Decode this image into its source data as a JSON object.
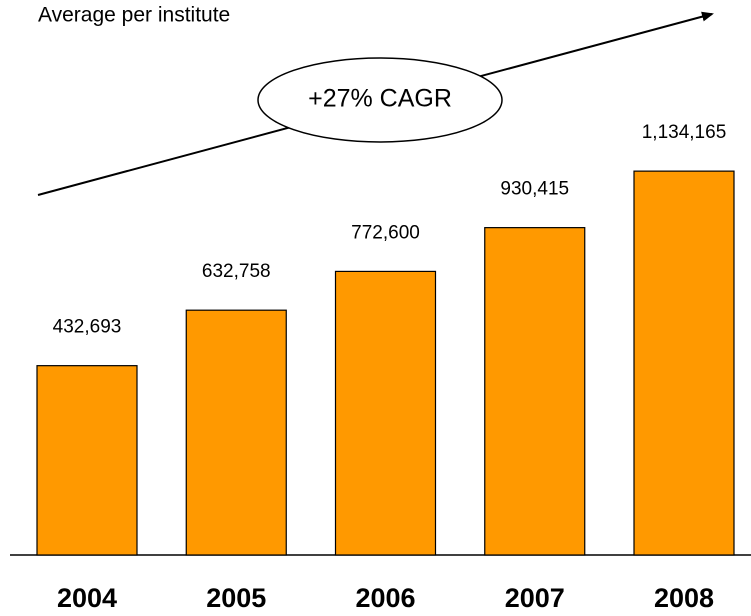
{
  "chart_data": {
    "type": "bar",
    "title": "Average per institute",
    "annotation": "+27% CAGR",
    "categories": [
      "2004",
      "2005",
      "2006",
      "2007",
      "2008"
    ],
    "values": [
      432693,
      632758,
      772600,
      930415,
      1134165
    ],
    "value_labels": [
      "432,693",
      "632,758",
      "772,600",
      "930,415",
      "1,134,165"
    ],
    "color": "#ff9900",
    "ylim": [
      -250000,
      1250000
    ]
  }
}
